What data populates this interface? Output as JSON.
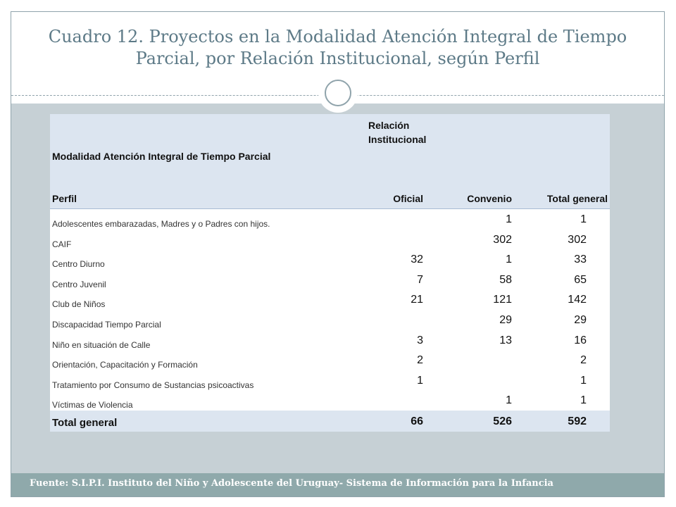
{
  "title": "Cuadro 12. Proyectos en la Modalidad Atención Integral de Tiempo Parcial, por Relación Institucional, según Perfil",
  "footer": "Fuente: S.I.P.I. Instituto del Niño y Adolescente del Uruguay- Sistema de Información para la Infancia",
  "table": {
    "header_group": "Relación Institucional",
    "header_modalidad": "Modalidad Atención Integral de Tiempo Parcial",
    "col_perfil": "Perfil",
    "col_oficial": "Oficial",
    "col_convenio": "Convenio",
    "col_total": "Total general",
    "rows": [
      {
        "perfil": "Adolescentes embarazadas, Madres y o  Padres con hijos.",
        "oficial": "",
        "convenio": "1",
        "total": "1"
      },
      {
        "perfil": "CAIF",
        "oficial": "",
        "convenio": "302",
        "total": "302"
      },
      {
        "perfil": "Centro Diurno",
        "oficial": "32",
        "convenio": "1",
        "total": "33"
      },
      {
        "perfil": "Centro Juvenil",
        "oficial": "7",
        "convenio": "58",
        "total": "65"
      },
      {
        "perfil": "Club de Niños",
        "oficial": "21",
        "convenio": "121",
        "total": "142"
      },
      {
        "perfil": "Discapacidad Tiempo Parcial",
        "oficial": "",
        "convenio": "29",
        "total": "29"
      },
      {
        "perfil": "Niño en situación de Calle",
        "oficial": "3",
        "convenio": "13",
        "total": "16"
      },
      {
        "perfil": "Orientación, Capacitación y Formación",
        "oficial": "2",
        "convenio": "",
        "total": "2"
      },
      {
        "perfil": "Tratamiento por Consumo de Sustancias psicoactivas",
        "oficial": "1",
        "convenio": "",
        "total": "1"
      },
      {
        "perfil": "Víctimas de Violencia",
        "oficial": "",
        "convenio": "1",
        "total": "1"
      }
    ],
    "total_row": {
      "perfil": "Total general",
      "oficial": "66",
      "convenio": "526",
      "total": "592"
    }
  }
}
